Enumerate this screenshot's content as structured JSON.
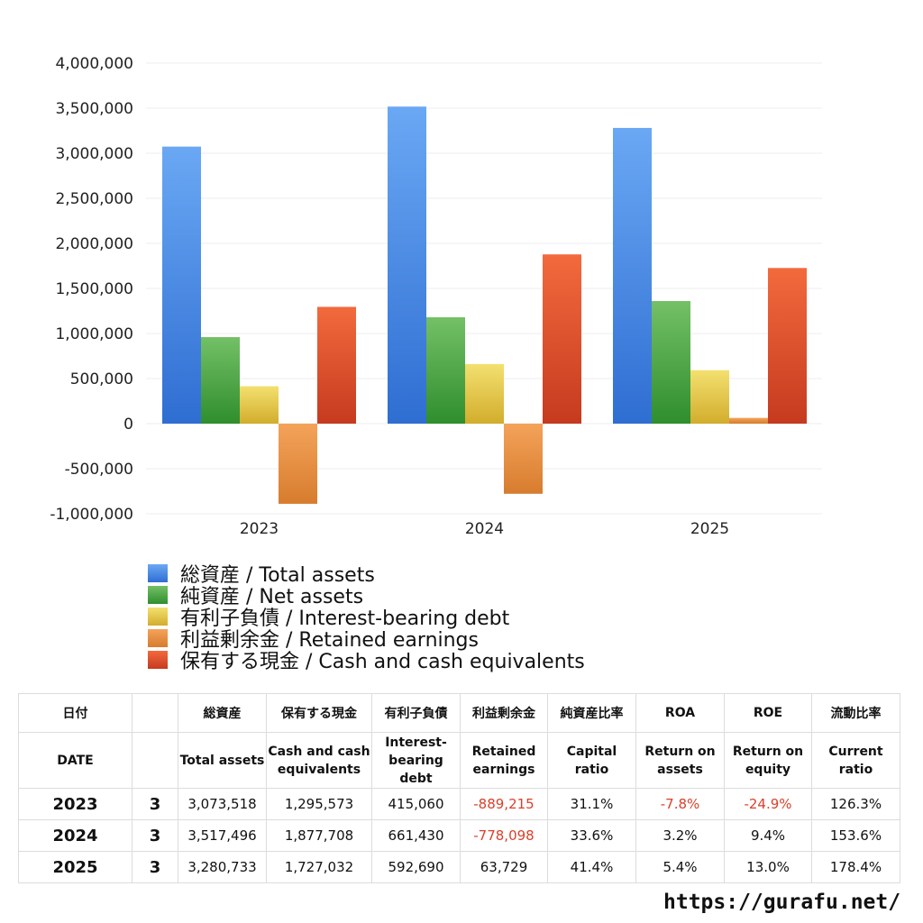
{
  "colors": {
    "total_assets": [
      "#6aa8f4",
      "#2f6ed2"
    ],
    "net_assets": [
      "#74c066",
      "#2f8e2d"
    ],
    "interest_bearing_debt": [
      "#f3e070",
      "#d2ad2c"
    ],
    "retained_earnings": [
      "#f4a35a",
      "#d77c2e"
    ],
    "cash": [
      "#f26a3d",
      "#c63a1f"
    ],
    "negative_text": "#d9412b"
  },
  "chart_data": {
    "type": "bar",
    "categories": [
      "2023",
      "2024",
      "2025"
    ],
    "ylim": [
      -1000000,
      4000000
    ],
    "yticks": [
      4000000,
      3500000,
      3000000,
      2500000,
      2000000,
      1500000,
      1000000,
      500000,
      0,
      -500000,
      -1000000
    ],
    "ytick_labels": [
      "4,000,000",
      "3,500,000",
      "3,000,000",
      "2,500,000",
      "2,000,000",
      "1,500,000",
      "1,000,000",
      "500,000",
      "0",
      "-500,000",
      "-1,000,000"
    ],
    "grid": true,
    "legend_position": "bottom-left",
    "series": [
      {
        "name": "総資産 / Total assets",
        "key": "total_assets",
        "values": [
          3073518,
          3517496,
          3280733
        ]
      },
      {
        "name": "純資産 / Net assets",
        "key": "net_assets",
        "values": [
          960000,
          1180000,
          1360000
        ]
      },
      {
        "name": "有利子負債 / Interest-bearing debt",
        "key": "interest_bearing_debt",
        "values": [
          415060,
          661430,
          592690
        ]
      },
      {
        "name": "利益剰余金 / Retained earnings",
        "key": "retained_earnings",
        "values": [
          -889215,
          -778098,
          63729
        ]
      },
      {
        "name": "保有する現金 /  Cash and cash equivalents",
        "key": "cash",
        "values": [
          1295573,
          1877708,
          1727032
        ]
      }
    ]
  },
  "table": {
    "header_jp": [
      "日付",
      "",
      "総資産",
      "保有する現金",
      "有利子負債",
      "利益剰余金",
      "純資産比率",
      "ROA",
      "ROE",
      "流動比率"
    ],
    "header_en": [
      "DATE",
      "",
      "Total assets",
      "Cash and cash equivalents",
      "Interest-bearing debt",
      "Retained earnings",
      "Capital ratio",
      "Return on assets",
      "Return on equity",
      "Current ratio"
    ],
    "rows": [
      {
        "year": "2023",
        "q": "3",
        "cells": [
          "3,073,518",
          "1,295,573",
          "415,060",
          "-889,215",
          "31.1%",
          "-7.8%",
          "-24.9%",
          "126.3%"
        ]
      },
      {
        "year": "2024",
        "q": "3",
        "cells": [
          "3,517,496",
          "1,877,708",
          "661,430",
          "-778,098",
          "33.6%",
          "3.2%",
          "9.4%",
          "153.6%"
        ]
      },
      {
        "year": "2025",
        "q": "3",
        "cells": [
          "3,280,733",
          "1,727,032",
          "592,690",
          "63,729",
          "41.4%",
          "5.4%",
          "13.0%",
          "178.4%"
        ]
      }
    ]
  },
  "footer": {
    "url": "https://gurafu.net/"
  }
}
